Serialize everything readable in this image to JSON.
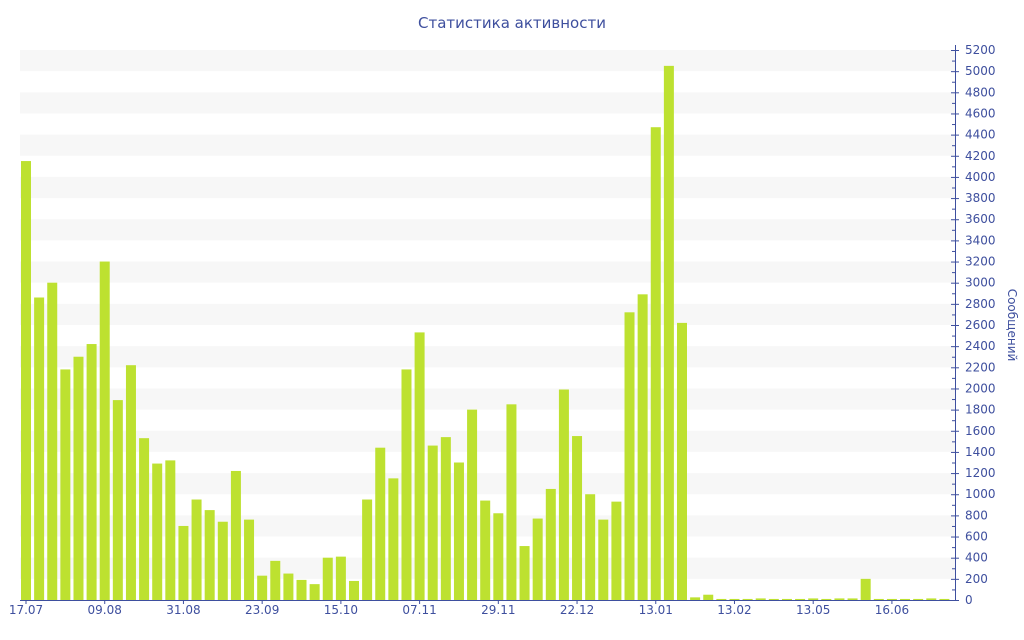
{
  "chart_data": {
    "type": "bar",
    "title": "Статистика активности",
    "xlabel": "",
    "ylabel": "Сообщений",
    "ylim": [
      0,
      5200
    ],
    "ytick_step": 200,
    "grid": "alternating horizontal bands",
    "bar_color": "#bde130",
    "axis_color": "#3e4f9e",
    "x_tick_labels": [
      {
        "index": 0,
        "label": "17.07"
      },
      {
        "index": 6,
        "label": "09.08"
      },
      {
        "index": 12,
        "label": "31.08"
      },
      {
        "index": 18,
        "label": "23.09"
      },
      {
        "index": 24,
        "label": "15.10"
      },
      {
        "index": 30,
        "label": "07.11"
      },
      {
        "index": 36,
        "label": "29.11"
      },
      {
        "index": 42,
        "label": "22.12"
      },
      {
        "index": 48,
        "label": "13.01"
      },
      {
        "index": 54,
        "label": "13.02"
      },
      {
        "index": 60,
        "label": "13.05"
      },
      {
        "index": 66,
        "label": "16.06"
      }
    ],
    "values": [
      4150,
      2860,
      3000,
      2180,
      2300,
      2420,
      3200,
      1890,
      2220,
      1530,
      1290,
      1320,
      700,
      950,
      850,
      740,
      1220,
      760,
      230,
      370,
      250,
      190,
      150,
      400,
      410,
      180,
      950,
      1440,
      1150,
      2180,
      2530,
      1460,
      1540,
      1300,
      1800,
      940,
      820,
      1850,
      510,
      770,
      1050,
      1990,
      1550,
      1000,
      760,
      930,
      2720,
      2890,
      4470,
      5050,
      2620,
      25,
      50,
      10,
      10,
      10,
      15,
      10,
      10,
      10,
      15,
      10,
      15,
      15,
      200,
      10,
      10,
      10,
      10,
      15,
      10
    ]
  }
}
